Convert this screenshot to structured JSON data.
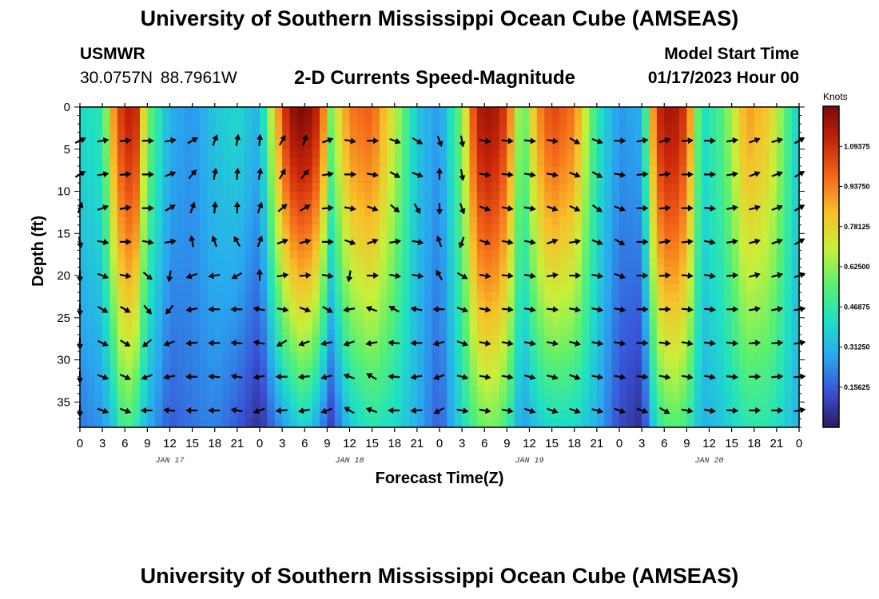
{
  "header": {
    "title": "University of Southern Mississippi Ocean Cube (AMSEAS)",
    "station": "USMWR",
    "coords": "30.0757N  88.7961W",
    "subtitle": "2-D Currents Speed-Magnitude",
    "start_label": "Model Start Time",
    "start_value": "01/17/2023 Hour 00"
  },
  "footer": {
    "title": "University of Southern Mississippi Ocean Cube (AMSEAS)"
  },
  "chart_data": {
    "type": "heatmap",
    "title": "2-D Currents Speed-Magnitude",
    "xlabel": "Forecast Time(Z)",
    "ylabel": "Depth (ft)",
    "x_range_hours": [
      0,
      96
    ],
    "ylim": [
      0,
      38
    ],
    "x_tick_hours": [
      0,
      3,
      6,
      9,
      12,
      15,
      18,
      21,
      24,
      27,
      30,
      33,
      36,
      39,
      42,
      45,
      48,
      51,
      54,
      57,
      60,
      63,
      66,
      69,
      72,
      75,
      78,
      81,
      84,
      87,
      90,
      93,
      96
    ],
    "x_tick_labels": [
      "0",
      "3",
      "6",
      "9",
      "12",
      "15",
      "18",
      "21",
      "0",
      "3",
      "6",
      "9",
      "12",
      "15",
      "18",
      "21",
      "0",
      "3",
      "6",
      "9",
      "12",
      "15",
      "18",
      "21",
      "0",
      "3",
      "6",
      "9",
      "12",
      "15",
      "18",
      "21",
      "0"
    ],
    "y_ticks": [
      0,
      5,
      10,
      15,
      20,
      25,
      30,
      35
    ],
    "y_tick_labels": [
      "0",
      "5",
      "10",
      "15",
      "20",
      "25",
      "30",
      "35"
    ],
    "date_labels": [
      {
        "hour": 12,
        "label": "JAN 17"
      },
      {
        "hour": 36,
        "label": "JAN 18"
      },
      {
        "hour": 60,
        "label": "JAN 19"
      },
      {
        "hour": 84,
        "label": "JAN 20"
      }
    ],
    "colorbar": {
      "unit": "Knots",
      "range": [
        0,
        1.25
      ],
      "ticks": [
        0.15625,
        0.3125,
        0.46875,
        0.625,
        0.78125,
        0.9375,
        1.09375
      ],
      "tick_labels": [
        "0.15625",
        "0.31250",
        "0.46875",
        "0.62500",
        "0.78125",
        "0.93750",
        "1.09375"
      ],
      "colors": [
        "#2b1a5e",
        "#3a52d6",
        "#2aa7f0",
        "#1fe0c4",
        "#5af070",
        "#c8f03a",
        "#f8c02a",
        "#f56a1a",
        "#c8260a",
        "#7a0a06"
      ]
    },
    "speed_profiles": [
      {
        "hour": 0,
        "surface": 0.4,
        "bottom": 0.2
      },
      {
        "hour": 3,
        "surface": 0.45,
        "bottom": 0.25
      },
      {
        "hour": 4.5,
        "surface": 0.9,
        "bottom": 0.35
      },
      {
        "hour": 6,
        "surface": 1.15,
        "bottom": 0.55
      },
      {
        "hour": 7.5,
        "surface": 1.1,
        "bottom": 0.45
      },
      {
        "hour": 9,
        "surface": 0.6,
        "bottom": 0.3
      },
      {
        "hour": 12,
        "surface": 0.3,
        "bottom": 0.15
      },
      {
        "hour": 15,
        "surface": 0.25,
        "bottom": 0.2
      },
      {
        "hour": 18,
        "surface": 0.35,
        "bottom": 0.22
      },
      {
        "hour": 21,
        "surface": 0.4,
        "bottom": 0.15
      },
      {
        "hour": 24,
        "surface": 0.3,
        "bottom": 0.05
      },
      {
        "hour": 26,
        "surface": 0.8,
        "bottom": 0.2
      },
      {
        "hour": 28,
        "surface": 1.2,
        "bottom": 0.3
      },
      {
        "hour": 30,
        "surface": 1.25,
        "bottom": 0.4
      },
      {
        "hour": 32,
        "surface": 1.1,
        "bottom": 0.25
      },
      {
        "hour": 33.5,
        "surface": 0.6,
        "bottom": 0.1
      },
      {
        "hour": 36,
        "surface": 0.95,
        "bottom": 0.35
      },
      {
        "hour": 39,
        "surface": 1.0,
        "bottom": 0.45
      },
      {
        "hour": 42,
        "surface": 0.7,
        "bottom": 0.4
      },
      {
        "hour": 45,
        "surface": 0.35,
        "bottom": 0.3
      },
      {
        "hour": 48,
        "surface": 0.25,
        "bottom": 0.15
      },
      {
        "hour": 51,
        "surface": 0.6,
        "bottom": 0.4
      },
      {
        "hour": 53,
        "surface": 1.15,
        "bottom": 0.55
      },
      {
        "hour": 55,
        "surface": 1.2,
        "bottom": 0.6
      },
      {
        "hour": 57,
        "surface": 1.05,
        "bottom": 0.5
      },
      {
        "hour": 59,
        "surface": 0.5,
        "bottom": 0.25
      },
      {
        "hour": 61,
        "surface": 0.9,
        "bottom": 0.35
      },
      {
        "hour": 63,
        "surface": 1.05,
        "bottom": 0.4
      },
      {
        "hour": 66,
        "surface": 0.95,
        "bottom": 0.4
      },
      {
        "hour": 69,
        "surface": 0.45,
        "bottom": 0.3
      },
      {
        "hour": 72,
        "surface": 0.25,
        "bottom": 0.12
      },
      {
        "hour": 75,
        "surface": 0.3,
        "bottom": 0.05
      },
      {
        "hour": 77,
        "surface": 1.1,
        "bottom": 0.45
      },
      {
        "hour": 79,
        "surface": 1.2,
        "bottom": 0.55
      },
      {
        "hour": 81,
        "surface": 1.05,
        "bottom": 0.5
      },
      {
        "hour": 83,
        "surface": 0.4,
        "bottom": 0.3
      },
      {
        "hour": 86,
        "surface": 0.55,
        "bottom": 0.35
      },
      {
        "hour": 89,
        "surface": 0.9,
        "bottom": 0.45
      },
      {
        "hour": 92,
        "surface": 0.8,
        "bottom": 0.45
      },
      {
        "hour": 96,
        "surface": 0.35,
        "bottom": 0.3
      }
    ],
    "vector_hours": [
      0,
      3,
      6,
      9,
      12,
      15,
      18,
      21,
      24,
      27,
      30,
      33,
      36,
      39,
      42,
      45,
      48,
      51,
      54,
      57,
      60,
      63,
      66,
      69,
      72,
      75,
      78,
      81,
      84,
      87,
      90,
      93,
      96
    ],
    "vector_depths": [
      4,
      8,
      12,
      16,
      20,
      24,
      28,
      32,
      36
    ],
    "vector_direction_deg": [
      [
        65,
        80,
        85,
        90,
        80,
        60,
        20,
        10,
        5,
        30,
        20,
        70,
        100,
        90,
        110,
        120,
        160,
        170,
        100,
        95,
        95,
        100,
        120,
        110,
        90,
        80,
        75,
        85,
        90,
        80,
        70,
        75,
        60
      ],
      [
        60,
        80,
        85,
        90,
        70,
        40,
        10,
        5,
        10,
        30,
        40,
        80,
        90,
        100,
        120,
        110,
        0,
        170,
        100,
        95,
        100,
        100,
        110,
        120,
        100,
        85,
        80,
        90,
        90,
        80,
        70,
        70,
        60
      ],
      [
        20,
        70,
        80,
        90,
        60,
        20,
        5,
        0,
        20,
        50,
        60,
        85,
        100,
        110,
        130,
        150,
        180,
        160,
        110,
        100,
        100,
        110,
        115,
        125,
        110,
        90,
        85,
        90,
        95,
        80,
        75,
        70,
        60
      ],
      [
        170,
        100,
        90,
        100,
        80,
        350,
        340,
        330,
        20,
        70,
        75,
        90,
        110,
        70,
        80,
        100,
        340,
        200,
        110,
        100,
        100,
        70,
        80,
        110,
        120,
        90,
        80,
        85,
        100,
        80,
        75,
        70,
        60
      ],
      [
        180,
        110,
        100,
        130,
        190,
        250,
        260,
        240,
        0,
        80,
        85,
        100,
        190,
        90,
        100,
        100,
        330,
        120,
        100,
        95,
        100,
        80,
        90,
        100,
        110,
        90,
        85,
        95,
        100,
        85,
        75,
        75,
        70
      ],
      [
        180,
        120,
        120,
        140,
        220,
        260,
        270,
        270,
        280,
        100,
        110,
        120,
        260,
        290,
        300,
        280,
        270,
        110,
        100,
        95,
        100,
        95,
        100,
        100,
        100,
        90,
        90,
        95,
        95,
        90,
        80,
        80,
        80
      ],
      [
        180,
        115,
        120,
        230,
        250,
        265,
        270,
        275,
        280,
        240,
        250,
        260,
        250,
        260,
        275,
        270,
        255,
        110,
        100,
        100,
        100,
        100,
        105,
        100,
        100,
        90,
        95,
        100,
        95,
        95,
        85,
        85,
        80
      ],
      [
        180,
        110,
        115,
        250,
        260,
        270,
        275,
        280,
        260,
        270,
        265,
        255,
        290,
        300,
        275,
        260,
        250,
        105,
        100,
        100,
        105,
        105,
        110,
        100,
        100,
        95,
        100,
        100,
        100,
        95,
        90,
        85,
        85
      ],
      [
        180,
        110,
        110,
        270,
        275,
        270,
        270,
        280,
        250,
        265,
        260,
        250,
        300,
        290,
        270,
        265,
        240,
        100,
        100,
        100,
        110,
        110,
        110,
        105,
        110,
        110,
        120,
        100,
        100,
        95,
        90,
        90,
        80
      ]
    ]
  }
}
